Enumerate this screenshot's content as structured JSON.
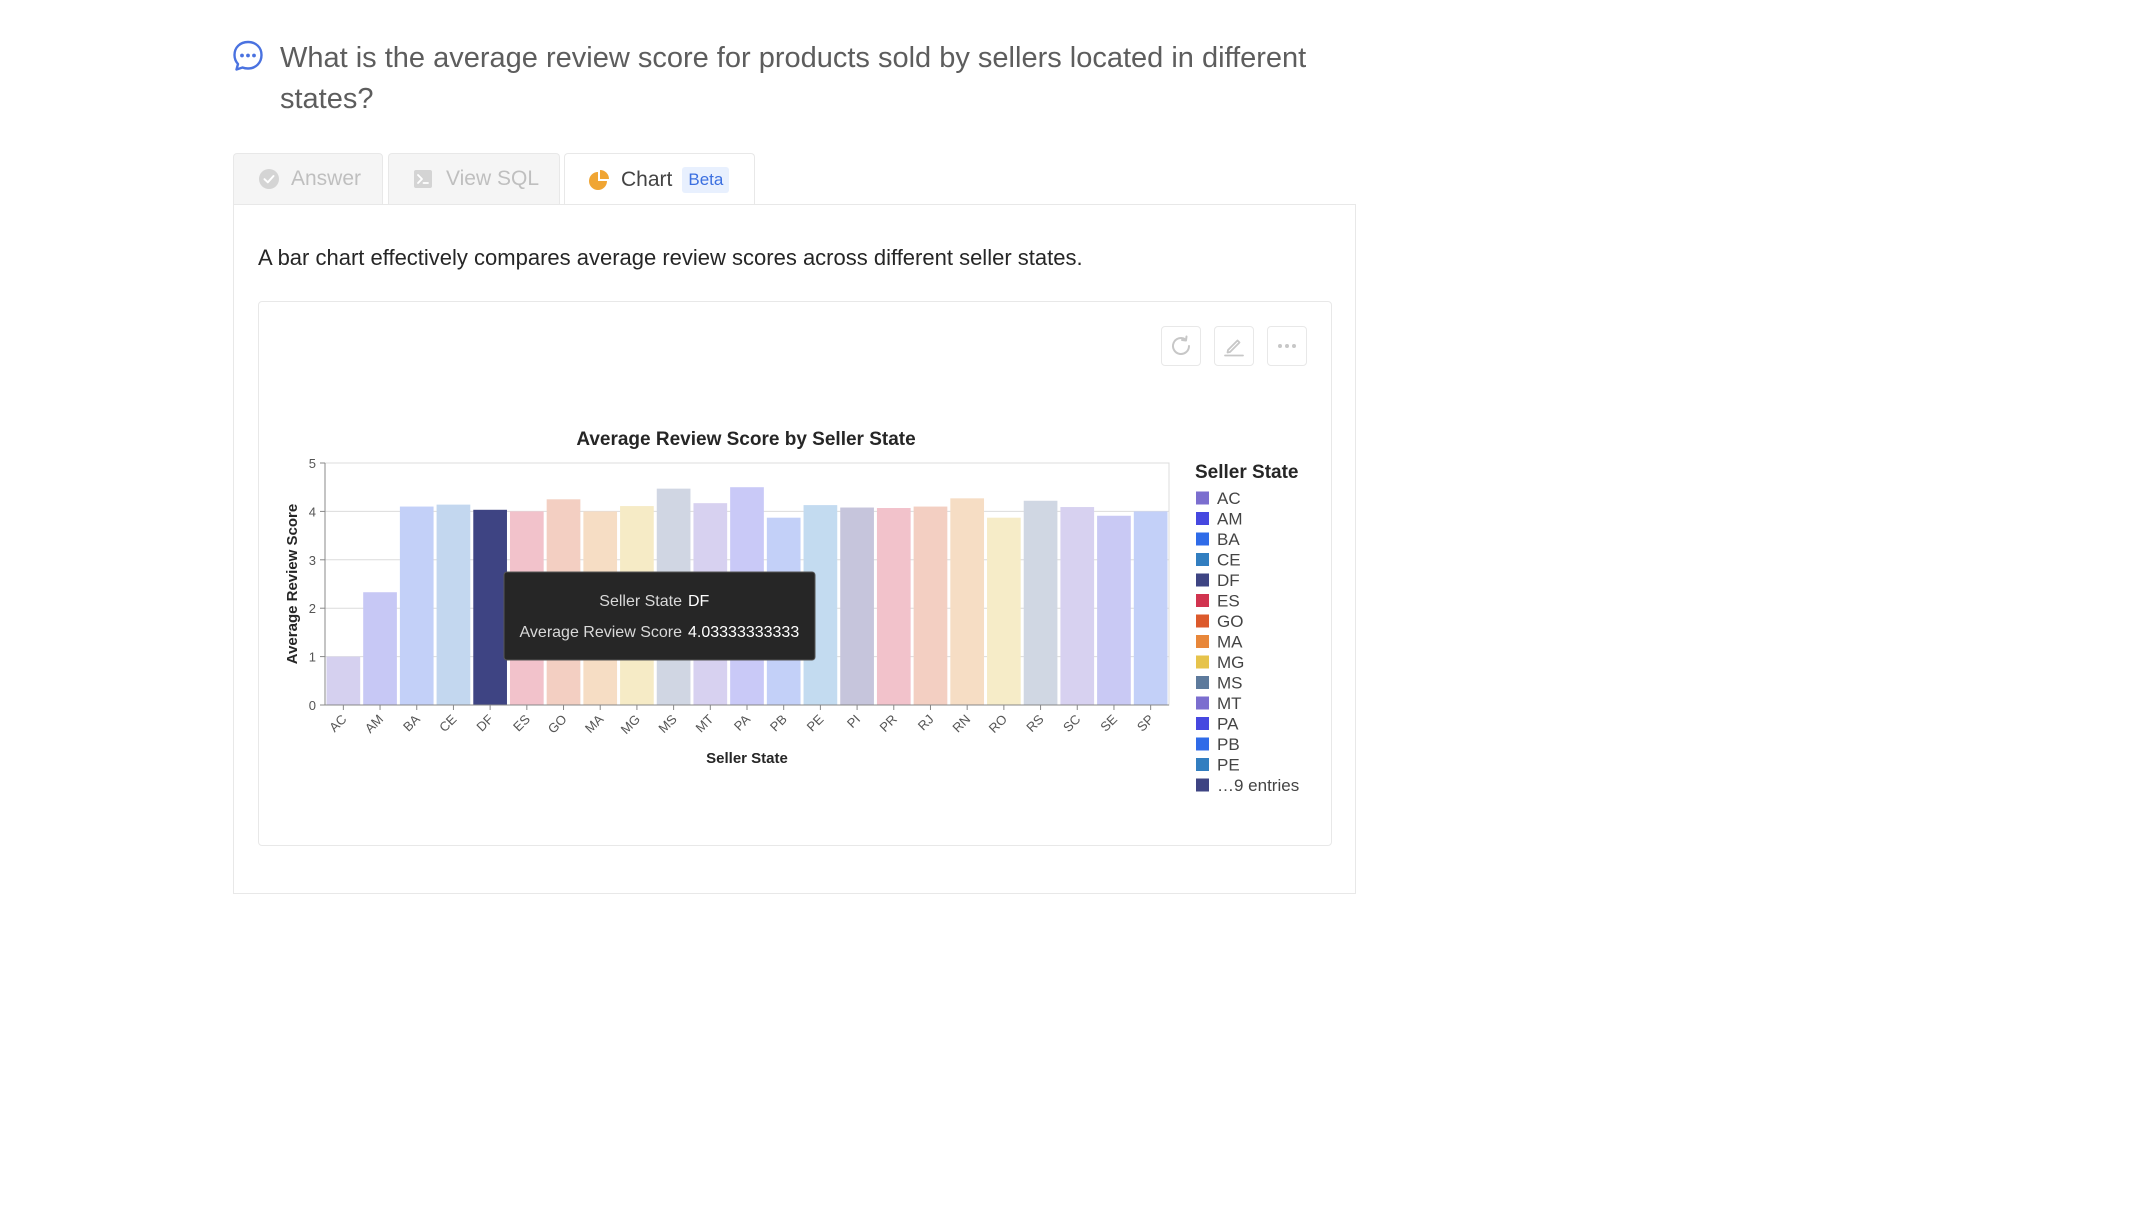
{
  "question": {
    "text": "What is the average review score for products sold by sellers located in different states?",
    "icon": "chat-icon"
  },
  "tabs": [
    {
      "label": "Answer",
      "icon": "check-circle-icon",
      "active": false
    },
    {
      "label": "View SQL",
      "icon": "terminal-icon",
      "active": false
    },
    {
      "label": "Chart",
      "icon": "pie-chart-icon",
      "active": true,
      "badge": "Beta"
    }
  ],
  "description": "A bar chart effectively compares average review scores across different seller states.",
  "toolbar": {
    "refresh_icon": "refresh-icon",
    "edit_icon": "edit-icon",
    "more_icon": "more-icon"
  },
  "colors": {
    "accent": "#3b6fe0",
    "highlight_bar": "#3e4483",
    "tooltip_bg": "#262626"
  },
  "chart_data": {
    "type": "bar",
    "title": "Average Review Score by Seller State",
    "xlabel": "Seller State",
    "ylabel": "Average Review Score",
    "ylim": [
      0,
      5
    ],
    "yticks": [
      0,
      1,
      2,
      3,
      4,
      5
    ],
    "grid": true,
    "categories": [
      "AC",
      "AM",
      "BA",
      "CE",
      "DF",
      "ES",
      "GO",
      "MA",
      "MG",
      "MS",
      "MT",
      "PA",
      "PB",
      "PE",
      "PI",
      "PR",
      "RJ",
      "RN",
      "RO",
      "RS",
      "SC",
      "SE",
      "SP"
    ],
    "values": [
      1.0,
      2.33,
      4.1,
      4.14,
      4.0333,
      4.0,
      4.25,
      4.0,
      4.11,
      4.47,
      4.17,
      4.5,
      3.87,
      4.13,
      4.08,
      4.07,
      4.1,
      4.27,
      3.87,
      4.22,
      4.09,
      3.91,
      4.0
    ],
    "colors": [
      "#d5d0ef",
      "#c7c8f5",
      "#c3d0f8",
      "#c3d7ef",
      "#3e4483",
      "#f2c2cb",
      "#f3cfc2",
      "#f6ddc4",
      "#f6ebc6",
      "#d0d6e3",
      "#d7d1f0",
      "#c9c9f7",
      "#c3d0f8",
      "#c3dbf0",
      "#c6c5dc",
      "#f2c2cb",
      "#f3cfc2",
      "#f6ddc4",
      "#f6ecc8",
      "#d0d7e3",
      "#d7d1f0",
      "#c9c9f4",
      "#c3d0f8"
    ],
    "highlight": "DF",
    "legend": {
      "title": "Seller State",
      "position": "right",
      "entries": [
        {
          "label": "AC",
          "color": "#7b6ecf"
        },
        {
          "label": "AM",
          "color": "#4648e0"
        },
        {
          "label": "BA",
          "color": "#2f6be8"
        },
        {
          "label": "CE",
          "color": "#327ec0"
        },
        {
          "label": "DF",
          "color": "#3e4483"
        },
        {
          "label": "ES",
          "color": "#d1344f"
        },
        {
          "label": "GO",
          "color": "#dc5a2c"
        },
        {
          "label": "MA",
          "color": "#e8873a"
        },
        {
          "label": "MG",
          "color": "#e6c34b"
        },
        {
          "label": "MS",
          "color": "#5d7a9c"
        },
        {
          "label": "MT",
          "color": "#7b6ecf"
        },
        {
          "label": "PA",
          "color": "#4648e0"
        },
        {
          "label": "PB",
          "color": "#2f6be8"
        },
        {
          "label": "PE",
          "color": "#327ec0"
        },
        {
          "label": "…9 entries",
          "color": "#3e4483"
        }
      ]
    },
    "tooltip": {
      "rows": [
        {
          "key": "Seller State",
          "value": "DF"
        },
        {
          "key": "Average Review Score",
          "value": "4.03333333333"
        }
      ]
    }
  }
}
